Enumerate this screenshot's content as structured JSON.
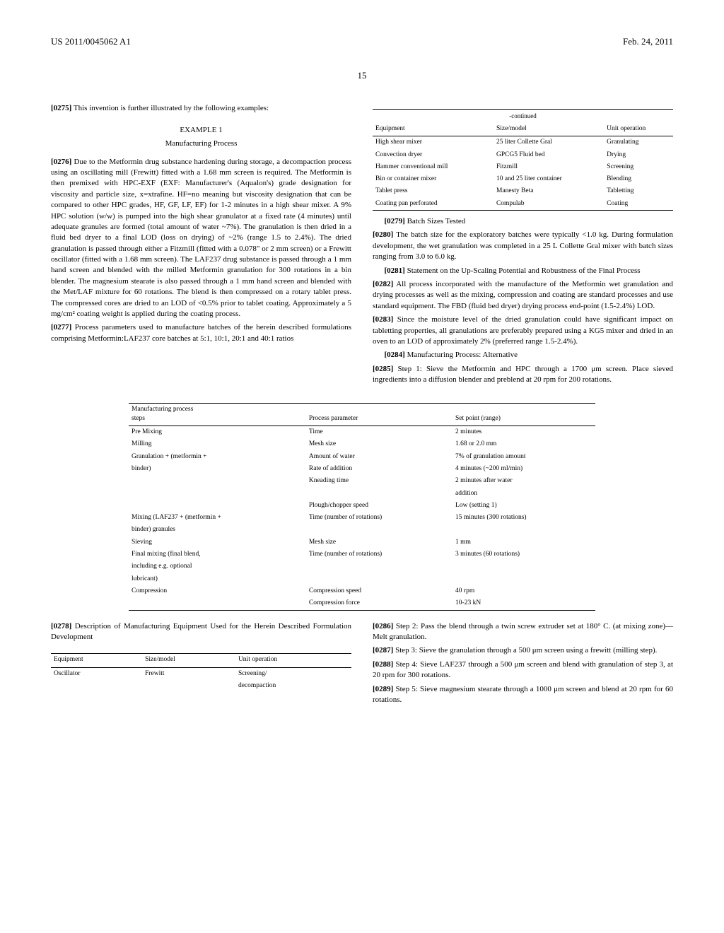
{
  "header": {
    "left": "US 2011/0045062 A1",
    "right": "Feb. 24, 2011"
  },
  "page_number": "15",
  "col1": {
    "p0275": "[0275]",
    "p0275_text": "This invention is further illustrated by the following examples:",
    "example_num": "EXAMPLE 1",
    "example_title": "Manufacturing Process",
    "p0276": "[0276]",
    "p0276_text": "Due to the Metformin drug substance hardening during storage, a decompaction process using an oscillating mill (Frewitt) fitted with a 1.68 mm screen is required. The Metformin is then premixed with HPC-EXF (EXF: Manufacturer's (Aqualon's) grade designation for viscosity and particle size, x=xtrafine. HF=no meaning but viscosity designation that can be compared to other HPC grades, HF, GF, LF, EF) for 1-2 minutes in a high shear mixer. A 9% HPC solution (w/w) is pumped into the high shear granulator at a fixed rate (4 minutes) until adequate granules are formed (total amount of water ~7%). The granulation is then dried in a fluid bed dryer to a final LOD (loss on drying) of ~2% (range 1.5 to 2.4%). The dried granulation is passed through either a Fitzmill (fitted with a 0.078\" or 2 mm screen) or a Frewitt oscillator (fitted with a 1.68 mm screen). The LAF237 drug substance is passed through a 1 mm hand screen and blended with the milled Metformin granulation for 300 rotations in a bin blender. The magnesium stearate is also passed through a 1 mm hand screen and blended with the Met/LAF mixture for 60 rotations. The blend is then compressed on a rotary tablet press. The compressed cores are dried to an LOD of <0.5% prior to tablet coating. Approximately a 5 mg/cm² coating weight is applied during the coating process.",
    "p0277": "[0277]",
    "p0277_text": "Process parameters used to manufacture batches of the herein described formulations comprising Metformin:LAF237 core batches at 5:1, 10:1, 20:1 and 40:1 ratios",
    "p0278": "[0278]",
    "p0278_text": "Description of Manufacturing Equipment Used for the Herein Described Formulation Development"
  },
  "col2": {
    "p0279": "[0279]",
    "p0279_text": "Batch Sizes Tested",
    "p0280": "[0280]",
    "p0280_text": "The batch size for the exploratory batches were typically <1.0 kg. During formulation development, the wet granulation was completed in a 25 L Collette Gral mixer with batch sizes ranging from 3.0 to 6.0 kg.",
    "p0281": "[0281]",
    "p0281_text": "Statement on the Up-Scaling Potential and Robustness of the Final Process",
    "p0282": "[0282]",
    "p0282_text": "All process incorporated with the manufacture of the Metformin wet granulation and drying processes as well as the mixing, compression and coating are standard processes and use standard equipment. The FBD (fluid bed dryer) drying process end-point (1.5-2.4%) LOD.",
    "p0283": "[0283]",
    "p0283_text": "Since the moisture level of the dried granulation could have significant impact on tabletting properties, all granulations are preferably prepared using a KG5 mixer and dried in an oven to an LOD of approximately 2% (preferred range 1.5-2.4%).",
    "p0284": "[0284]",
    "p0284_text": "Manufacturing Process: Alternative",
    "p0285": "[0285]",
    "p0285_text": "Step 1: Sieve the Metformin and HPC through a 1700 μm screen. Place sieved ingredients into a diffusion blender and preblend at 20 rpm for 200 rotations.",
    "p0286": "[0286]",
    "p0286_text": "Step 2: Pass the blend through a twin screw extruder set at 180° C. (at mixing zone)—Melt granulation.",
    "p0287": "[0287]",
    "p0287_text": "Step 3: Sieve the granulation through a 500 μm screen using a frewitt (milling step).",
    "p0288": "[0288]",
    "p0288_text": "Step 4: Sieve LAF237 through a 500 μm screen and blend with granulation of step 3, at 20 rpm for 300 rotations.",
    "p0289": "[0289]",
    "p0289_text": "Step 5: Sieve magnesium stearate through a 1000 μm screen and blend at 20 rpm for 60 rotations."
  },
  "table1": {
    "title_line1": "Manufacturing process",
    "title_line2": "steps",
    "col2_header": "Process parameter",
    "col3_header": "Set point (range)",
    "rows": [
      [
        "Pre Mixing",
        "Time",
        "2 minutes"
      ],
      [
        "Milling",
        "Mesh size",
        "1.68 or 2.0 mm"
      ],
      [
        "Granulation + (metformin +",
        "Amount of water",
        "7% of granulation amount"
      ],
      [
        "binder)",
        "Rate of addition",
        "4 minutes (~200 ml/min)"
      ],
      [
        "",
        "Kneading time",
        "2 minutes after water"
      ],
      [
        "",
        "",
        "addition"
      ],
      [
        "",
        "Plough/chopper speed",
        "Low (setting 1)"
      ],
      [
        "Mixing (LAF237 + (metformin +",
        "Time (number of rotations)",
        "15 minutes (300 rotations)"
      ],
      [
        "binder) granules",
        "",
        ""
      ],
      [
        "Sieving",
        "Mesh size",
        "1 mm"
      ],
      [
        "Final mixing (final blend,",
        "Time (number of rotations)",
        "3 minutes (60 rotations)"
      ],
      [
        "including e.g. optional",
        "",
        ""
      ],
      [
        "lubricant)",
        "",
        ""
      ],
      [
        "Compression",
        "Compression speed",
        "40 rpm"
      ],
      [
        "",
        "Compression force",
        "10-23 kN"
      ]
    ]
  },
  "table2": {
    "h1": "Equipment",
    "h2": "Size/model",
    "h3": "Unit operation",
    "rows": [
      [
        "Oscillator",
        "Frewitt",
        "Screening/"
      ],
      [
        "",
        "",
        "decompaction"
      ]
    ]
  },
  "table3": {
    "continued": "-continued",
    "h1": "Equipment",
    "h2": "Size/model",
    "h3": "Unit operation",
    "rows": [
      [
        "High shear mixer",
        "25 liter Collette Gral",
        "Granulating"
      ],
      [
        "Convection dryer",
        "GPCG5 Fluid bed",
        "Drying"
      ],
      [
        "Hammer conventional mill",
        "Fitzmill",
        "Screening"
      ],
      [
        "Bin or container mixer",
        "10 and 25 liter container",
        "Blending"
      ],
      [
        "Tablet press",
        "Manesty Beta",
        "Tabletting"
      ],
      [
        "Coating pan perforated",
        "Compulab",
        "Coating"
      ]
    ]
  }
}
